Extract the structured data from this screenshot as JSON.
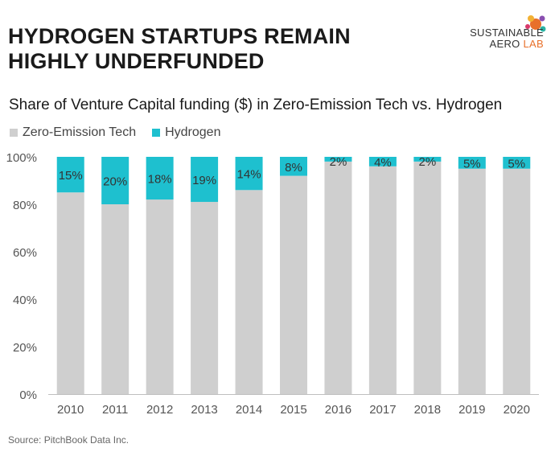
{
  "headline": {
    "line1": "HYDROGEN STARTUPS REMAIN",
    "line2": "HIGHLY UNDERFUNDED"
  },
  "logo": {
    "line1": "SUSTAINABLE",
    "line2_a": "AERO",
    "line2_b": "LAB"
  },
  "source": "Source: PitchBook Data Inc.",
  "colors": {
    "zero_emission": "#cfcfcf",
    "hydrogen": "#1ec0cf",
    "title": "#1a1a1a",
    "axis_text": "#555555"
  },
  "chart_data": {
    "type": "bar",
    "stacked": true,
    "title": "Share of Venture Capital funding ($) in Zero-Emission Tech vs. Hydrogen",
    "legend_position": "top-left",
    "categories": [
      "2010",
      "2011",
      "2012",
      "2013",
      "2014",
      "2015",
      "2016",
      "2017",
      "2018",
      "2019",
      "2020"
    ],
    "ylim": [
      0,
      100
    ],
    "yticks": [
      "0%",
      "20%",
      "40%",
      "60%",
      "80%",
      "100%"
    ],
    "grid": false,
    "series": [
      {
        "name": "Zero-Emission Tech",
        "values": [
          85,
          80,
          82,
          81,
          86,
          92,
          98,
          96,
          98,
          95,
          95
        ]
      },
      {
        "name": "Hydrogen",
        "values": [
          15,
          20,
          18,
          19,
          14,
          8,
          2,
          4,
          2,
          5,
          5
        ]
      }
    ],
    "data_labels": [
      "15%",
      "20%",
      "18%",
      "19%",
      "14%",
      "8%",
      "2%",
      "4%",
      "2%",
      "5%",
      "5%"
    ]
  }
}
